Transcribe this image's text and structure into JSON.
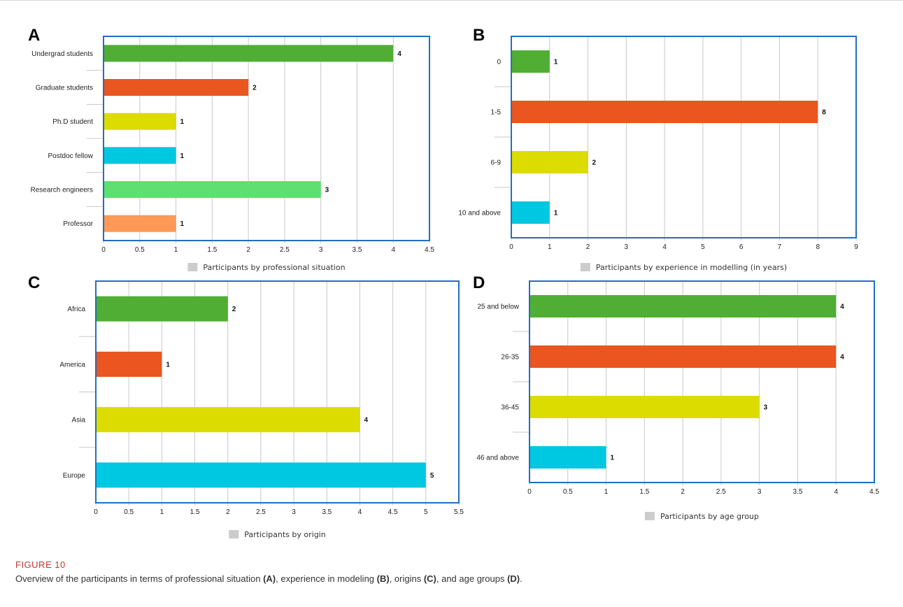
{
  "figure": {
    "title": "FIGURE 10",
    "caption_parts": [
      {
        "text": "Overview of the participants in terms of professional situation ",
        "bold": false
      },
      {
        "text": "(A)",
        "bold": true
      },
      {
        "text": ", experience in modeling ",
        "bold": false
      },
      {
        "text": "(B)",
        "bold": true
      },
      {
        "text": ", origins ",
        "bold": false
      },
      {
        "text": "(C)",
        "bold": true
      },
      {
        "text": ", and age groups ",
        "bold": false
      },
      {
        "text": "(D)",
        "bold": true
      },
      {
        "text": ".",
        "bold": false
      }
    ]
  },
  "chart_data": [
    {
      "panel": "A",
      "type": "bar",
      "orientation": "horizontal",
      "categories": [
        "Undergrad students",
        "Graduate students",
        "Ph.D student",
        "Postdoc fellow",
        "Research engineers",
        "Professor"
      ],
      "values": [
        4,
        2,
        1,
        1,
        3,
        1
      ],
      "colors": [
        "#4fae33",
        "#ea5520",
        "#dcdc00",
        "#00c8e0",
        "#5ee070",
        "#ff9955"
      ],
      "xlim": [
        0,
        4.5
      ],
      "ticks": [
        "0",
        "0.5",
        "1",
        "1.5",
        "2",
        "2.5",
        "3",
        "3.5",
        "4",
        "4.5"
      ],
      "legend": "Participants by professional situation",
      "legend_color": "#cccccc",
      "grid": true,
      "frame_color": "#1f6fc4"
    },
    {
      "panel": "B",
      "type": "bar",
      "orientation": "horizontal",
      "categories": [
        "0",
        "1-5",
        "6-9",
        "10 and above"
      ],
      "values": [
        1,
        8,
        2,
        1
      ],
      "colors": [
        "#4fae33",
        "#ea5520",
        "#dcdc00",
        "#00c8e0"
      ],
      "xlim": [
        0,
        9
      ],
      "ticks": [
        "0",
        "1",
        "2",
        "3",
        "4",
        "5",
        "6",
        "7",
        "8",
        "9"
      ],
      "legend": "Participants by experience in modelling (in years)",
      "legend_color": "#cccccc",
      "grid": true,
      "frame_color": "#1f6fc4"
    },
    {
      "panel": "C",
      "type": "bar",
      "orientation": "horizontal",
      "categories": [
        "Africa",
        "America",
        "Asia",
        "Europe"
      ],
      "values": [
        2,
        1,
        4,
        5
      ],
      "colors": [
        "#4fae33",
        "#ea5520",
        "#dcdc00",
        "#00c8e0"
      ],
      "xlim": [
        0,
        5.5
      ],
      "ticks": [
        "0",
        "0.5",
        "1",
        "1.5",
        "2",
        "2.5",
        "3",
        "3.5",
        "4",
        "4.5",
        "5",
        "5.5"
      ],
      "legend": "Participants by origin",
      "legend_color": "#cccccc",
      "grid": true,
      "frame_color": "#1f6fc4"
    },
    {
      "panel": "D",
      "type": "bar",
      "orientation": "horizontal",
      "categories": [
        "25 and below",
        "26-35",
        "36-45",
        "46 and above"
      ],
      "values": [
        4,
        4,
        3,
        1
      ],
      "colors": [
        "#4fae33",
        "#ea5520",
        "#dcdc00",
        "#00c8e0"
      ],
      "xlim": [
        0,
        4.5
      ],
      "ticks": [
        "0",
        "0.5",
        "1",
        "1.5",
        "2",
        "2.5",
        "3",
        "3.5",
        "4",
        "4.5"
      ],
      "legend": "Participants by age group",
      "legend_color": "#cccccc",
      "grid": true,
      "frame_color": "#1f6fc4"
    }
  ]
}
